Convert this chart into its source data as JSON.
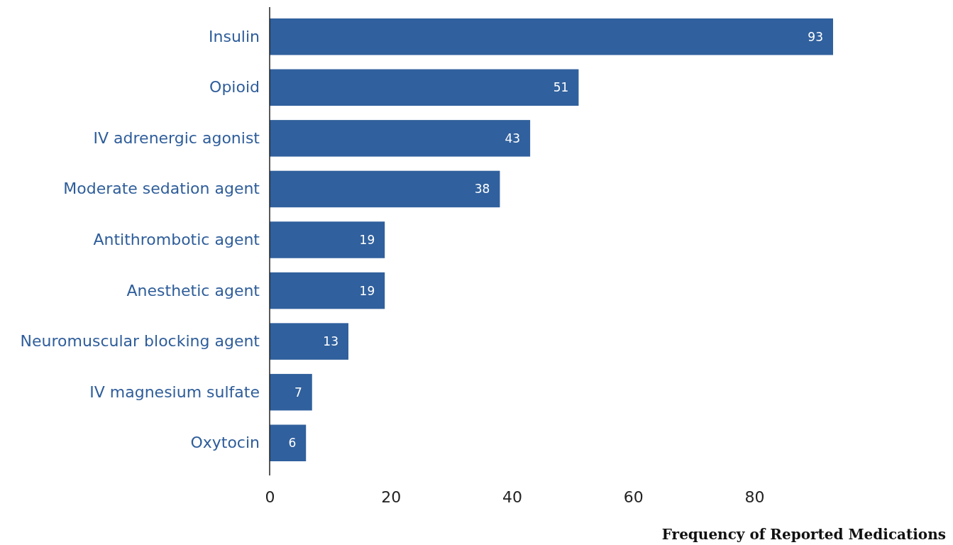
{
  "chart_data": {
    "type": "bar",
    "orientation": "horizontal",
    "xlabel": "Frequency of Reported Medications",
    "categories": [
      "Insulin",
      "Opioid",
      "IV adrenergic agonist",
      "Moderate sedation agent",
      "Antithrombotic agent",
      "Anesthetic agent",
      "Neuromuscular blocking agent",
      "IV magnesium sulfate",
      "Oxytocin"
    ],
    "values": [
      93,
      51,
      43,
      38,
      19,
      19,
      13,
      7,
      6
    ],
    "color": "#30609d",
    "xlim": [
      0,
      93
    ],
    "xticks": [
      0,
      20,
      40,
      60,
      80
    ],
    "data_labels": true
  }
}
